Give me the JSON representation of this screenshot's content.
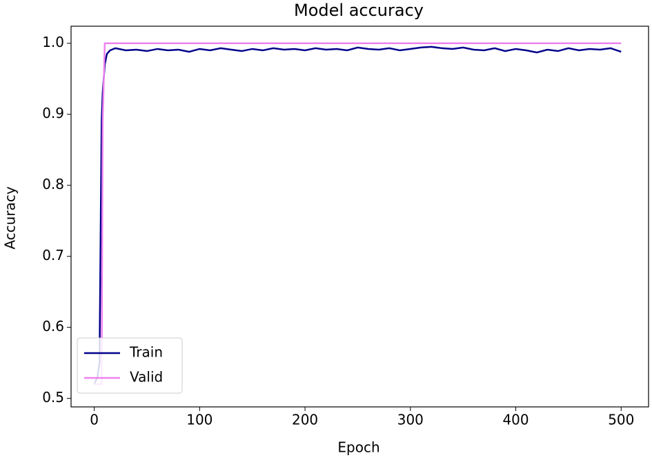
{
  "chart_data": {
    "type": "line",
    "title": "Model accuracy",
    "x_label": "Epoch",
    "y_label": "Accuracy",
    "x": [
      0,
      3,
      5,
      7,
      8,
      10,
      12,
      15,
      20,
      30,
      40,
      50,
      60,
      70,
      80,
      90,
      100,
      110,
      120,
      130,
      140,
      150,
      160,
      170,
      180,
      190,
      200,
      210,
      220,
      230,
      240,
      250,
      260,
      270,
      280,
      290,
      300,
      310,
      320,
      330,
      340,
      350,
      360,
      370,
      380,
      390,
      400,
      410,
      420,
      430,
      440,
      450,
      460,
      470,
      480,
      490,
      500
    ],
    "series": [
      {
        "name": "Train",
        "color": "#00008b",
        "values": [
          0.52,
          0.53,
          0.55,
          0.89,
          0.93,
          0.97,
          0.985,
          0.99,
          0.993,
          0.99,
          0.991,
          0.989,
          0.992,
          0.99,
          0.991,
          0.988,
          0.992,
          0.99,
          0.993,
          0.991,
          0.989,
          0.992,
          0.99,
          0.993,
          0.991,
          0.992,
          0.99,
          0.993,
          0.991,
          0.992,
          0.99,
          0.994,
          0.992,
          0.991,
          0.993,
          0.99,
          0.992,
          0.994,
          0.995,
          0.993,
          0.992,
          0.994,
          0.991,
          0.99,
          0.993,
          0.989,
          0.992,
          0.99,
          0.987,
          0.991,
          0.989,
          0.993,
          0.99,
          0.992,
          0.991,
          0.993,
          0.988
        ]
      },
      {
        "name": "Valid",
        "color": "#ee82ee",
        "values": [
          0.52,
          0.52,
          0.52,
          0.52,
          0.89,
          1.0,
          1.0,
          1.0,
          1.0,
          1.0,
          1.0,
          1.0,
          1.0,
          1.0,
          1.0,
          1.0,
          1.0,
          1.0,
          1.0,
          1.0,
          1.0,
          1.0,
          1.0,
          1.0,
          1.0,
          1.0,
          1.0,
          1.0,
          1.0,
          1.0,
          1.0,
          1.0,
          1.0,
          1.0,
          1.0,
          1.0,
          1.0,
          1.0,
          1.0,
          1.0,
          1.0,
          1.0,
          1.0,
          1.0,
          1.0,
          1.0,
          1.0,
          1.0,
          1.0,
          1.0,
          1.0,
          1.0,
          1.0,
          1.0,
          1.0,
          1.0,
          1.0
        ]
      }
    ],
    "xlim": [
      -22,
      526
    ],
    "xticks": [
      0,
      100,
      200,
      300,
      400,
      500
    ],
    "ylim": [
      0.488,
      1.024
    ],
    "yticks": [
      0.5,
      0.6,
      0.7,
      0.8,
      0.9,
      {
        "value": 1,
        "label": "1.0"
      }
    ],
    "legend": "lower left",
    "grid": false
  }
}
